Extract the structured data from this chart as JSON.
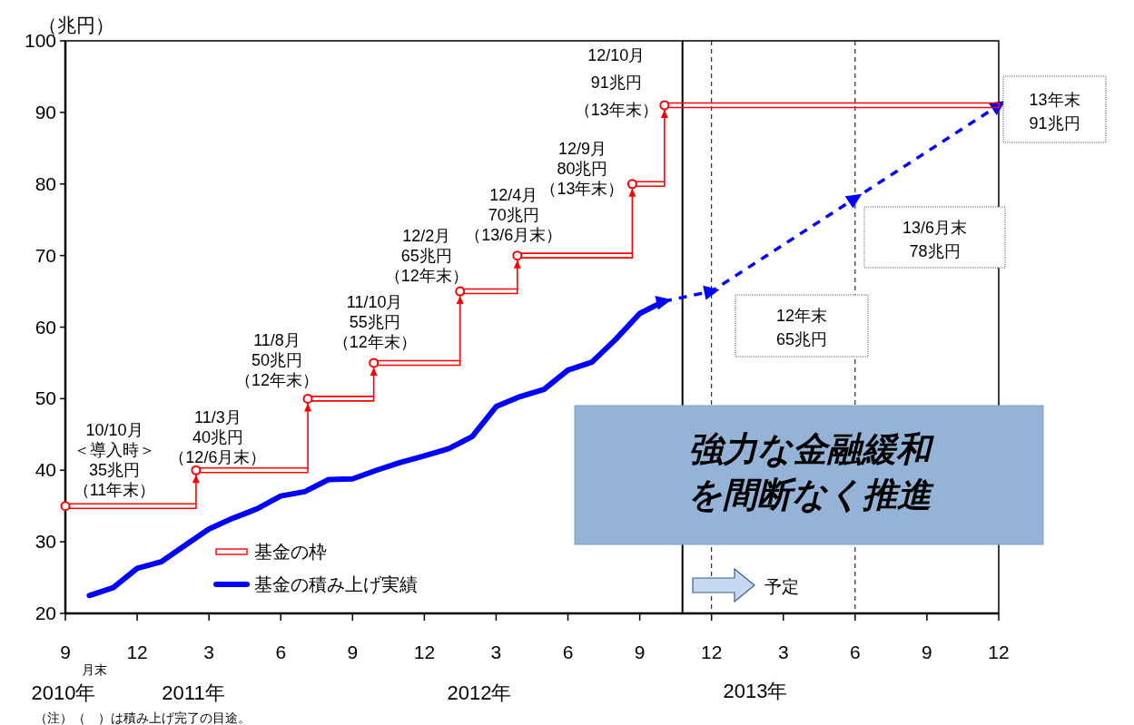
{
  "chart_data": {
    "type": "line",
    "ylabel": "（兆円）",
    "xlim": [
      "2010-09",
      "2013-12"
    ],
    "xticks": [
      {
        "value": "2010-09",
        "label": "9"
      },
      {
        "value": "2010-12",
        "label": "12"
      },
      {
        "value": "2011-03",
        "label": "3"
      },
      {
        "value": "2011-06",
        "label": "6"
      },
      {
        "value": "2011-09",
        "label": "9"
      },
      {
        "value": "2011-12",
        "label": "12"
      },
      {
        "value": "2012-03",
        "label": "3"
      },
      {
        "value": "2012-06",
        "label": "6"
      },
      {
        "value": "2012-09",
        "label": "9"
      },
      {
        "value": "2012-12",
        "label": "12"
      },
      {
        "value": "2013-03",
        "label": "3"
      },
      {
        "value": "2013-06",
        "label": "6"
      },
      {
        "value": "2013-09",
        "label": "9"
      },
      {
        "value": "2013-12",
        "label": "12"
      }
    ],
    "ylim": [
      20,
      100
    ],
    "yticks": [
      20,
      30,
      40,
      50,
      60,
      70,
      80,
      90,
      100
    ],
    "legend": "bottom left",
    "series": [
      {
        "name": "基金の枠",
        "type": "step",
        "color": "#ff0000",
        "marker": "circle",
        "x": [
          "2010-09",
          "2011-02-15",
          "2011-07-05",
          "2011-09-28",
          "2012-01-16",
          "2012-03-28",
          "2012-08-22",
          "2012-10-02",
          "2013-12"
        ],
        "values": [
          35,
          40,
          50,
          55,
          65,
          70,
          80,
          91,
          91
        ]
      },
      {
        "name": "基金の積み上げ実績",
        "color": "#0000ff",
        "x": [
          "2010-10",
          "2010-11",
          "2010-12",
          "2011-01",
          "2011-02",
          "2011-03",
          "2011-04",
          "2011-05",
          "2011-06",
          "2011-07",
          "2011-08",
          "2011-09",
          "2011-10",
          "2011-11",
          "2011-12",
          "2012-01",
          "2012-02",
          "2012-03",
          "2012-04",
          "2012-05",
          "2012-06",
          "2012-07",
          "2012-08",
          "2012-09",
          "2012-10"
        ],
        "values": [
          22.5,
          23.6,
          26.3,
          27.2,
          29.5,
          31.8,
          33.3,
          34.6,
          36.4,
          37.0,
          38.7,
          38.8,
          40.0,
          41.1,
          42.0,
          43.0,
          44.7,
          48.9,
          50.3,
          51.3,
          54.0,
          55.1,
          58.3,
          61.9,
          63.6
        ]
      },
      {
        "color": "#0000ff",
        "line_style": "dashed",
        "marker": "triangle",
        "x": [
          "2012-10",
          "2012-12",
          "2013-06",
          "2013-12"
        ],
        "values": [
          63.6,
          65,
          78,
          91
        ]
      }
    ],
    "ref_lines": [
      {
        "axis": "x",
        "value": "2012-10-25",
        "color": "#000000",
        "line_style": "solid"
      },
      {
        "axis": "x",
        "value": "2012-12",
        "color": "#000000",
        "line_style": "dashed"
      },
      {
        "axis": "x",
        "value": "2013-06",
        "color": "#000000",
        "line_style": "dashed"
      }
    ],
    "annotations": [
      {
        "text": "10/10月＜導入時＞35兆円（11年末）",
        "x": "2010-09",
        "y": 35
      },
      {
        "text": "11/3月40兆円（12/6月末）",
        "x": "2011-02-15",
        "y": 40
      },
      {
        "text": "11/8月50兆円（12年末）",
        "x": "2011-07-05",
        "y": 50
      },
      {
        "text": "11/10月55兆円（12年末）",
        "x": "2011-09-28",
        "y": 55
      },
      {
        "text": "12/2月65兆円（12年末）",
        "x": "2012-01-16",
        "y": 65
      },
      {
        "text": "12/4月70兆円（13/6月末）",
        "x": "2012-03-28",
        "y": 70
      },
      {
        "text": "12/9月80兆円（13年末）",
        "x": "2012-08-22",
        "y": 80
      },
      {
        "text": "12/10月91兆円（13年末）",
        "x": "2012-10-02",
        "y": 91
      },
      "12年末65兆円",
      "13/6月末78兆円",
      "13年末91兆円",
      "強力な金融緩和を間断なく推進",
      "予定",
      "月末",
      "2010年",
      "2011年",
      "2012年",
      "2013年",
      "（注）（　）は積み上げ完了の目途。"
    ]
  }
}
